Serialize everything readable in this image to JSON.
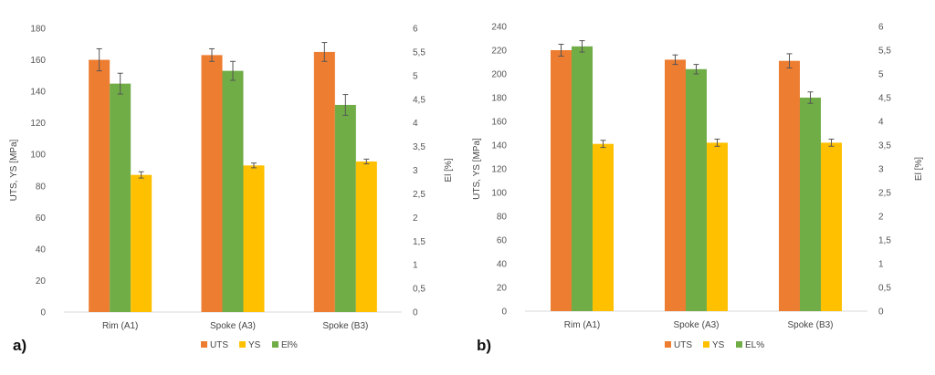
{
  "chart_data": [
    {
      "type": "bar",
      "panel_label": "a)",
      "categories": [
        "Rim (A1)",
        "Spoke (A3)",
        "Spoke (B3)"
      ],
      "series": [
        {
          "name": "UTS",
          "axis": "left",
          "color": "#ED7D31",
          "values": [
            160,
            163,
            165
          ],
          "errors": [
            7,
            4,
            6
          ]
        },
        {
          "name": "El%",
          "axis": "right",
          "color": "#70AD47",
          "values": [
            4.83,
            5.1,
            4.38
          ],
          "errors": [
            0.22,
            0.2,
            0.22
          ]
        },
        {
          "name": "YS",
          "axis": "left",
          "color": "#FFC000",
          "values": [
            87,
            93,
            95.5
          ],
          "errors": [
            2,
            1.5,
            1.5
          ]
        }
      ],
      "left_axis": {
        "label": "UTS, YS [MPa]",
        "ylim": [
          0,
          180
        ],
        "ticks": [
          "0",
          "20",
          "40",
          "60",
          "80",
          "100",
          "120",
          "140",
          "160",
          "180"
        ]
      },
      "right_axis": {
        "label": "El [%]",
        "ylim": [
          0,
          6
        ],
        "ticks": [
          "0",
          "0,5",
          "1",
          "1,5",
          "2",
          "2,5",
          "3",
          "3,5",
          "4",
          "4,5",
          "5",
          "5,5",
          "6"
        ]
      },
      "legend": {
        "position": "bottom",
        "order": [
          "UTS",
          "YS",
          "El%"
        ]
      },
      "grid": false
    },
    {
      "type": "bar",
      "panel_label": "b)",
      "categories": [
        "Rim (A1)",
        "Spoke (A3)",
        "Spoke (B3)"
      ],
      "series": [
        {
          "name": "UTS",
          "axis": "left",
          "color": "#ED7D31",
          "values": [
            220,
            212,
            211
          ],
          "errors": [
            5,
            4,
            6
          ]
        },
        {
          "name": "EL%",
          "axis": "right",
          "color": "#70AD47",
          "values": [
            5.58,
            5.1,
            4.5
          ],
          "errors": [
            0.12,
            0.1,
            0.12
          ]
        },
        {
          "name": "YS",
          "axis": "left",
          "color": "#FFC000",
          "values": [
            141,
            142,
            142
          ],
          "errors": [
            3,
            3,
            3
          ]
        }
      ],
      "left_axis": {
        "label": "UTS, YS [MPa]",
        "ylim": [
          0,
          240
        ],
        "ticks": [
          "0",
          "20",
          "40",
          "60",
          "80",
          "100",
          "120",
          "140",
          "160",
          "180",
          "200",
          "220",
          "240"
        ]
      },
      "right_axis": {
        "label": "El [%]",
        "ylim": [
          0,
          6
        ],
        "ticks": [
          "0",
          "0,5",
          "1",
          "1,5",
          "2",
          "2,5",
          "3",
          "3,5",
          "4",
          "4,5",
          "5",
          "5,5",
          "6"
        ]
      },
      "legend": {
        "position": "bottom",
        "order": [
          "UTS",
          "YS",
          "EL%"
        ]
      },
      "grid": false
    }
  ]
}
